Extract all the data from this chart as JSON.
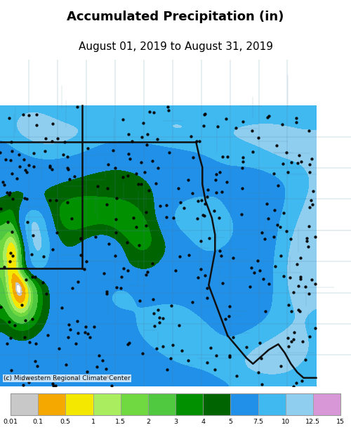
{
  "title": "Accumulated Precipitation (in)",
  "subtitle": "August 01, 2019 to August 31, 2019",
  "title_fontsize": 13,
  "subtitle_fontsize": 11,
  "credit": "(c) Midwestern Regional Climate Center",
  "colorbar_labels": [
    "0.01",
    "0.1",
    "0.5",
    "1",
    "1.5",
    "2",
    "3",
    "4",
    "5",
    "7.5",
    "10",
    "12.5",
    "15"
  ],
  "colorbar_colors": [
    "#c8c8c8",
    "#f5a800",
    "#f5e800",
    "#aaee60",
    "#70d840",
    "#50c840",
    "#009000",
    "#006400",
    "#2090e8",
    "#40b8f0",
    "#90cef0",
    "#d898d8"
  ],
  "fig_bg": "#ffffff",
  "map_border_color": "#c8c8c8"
}
